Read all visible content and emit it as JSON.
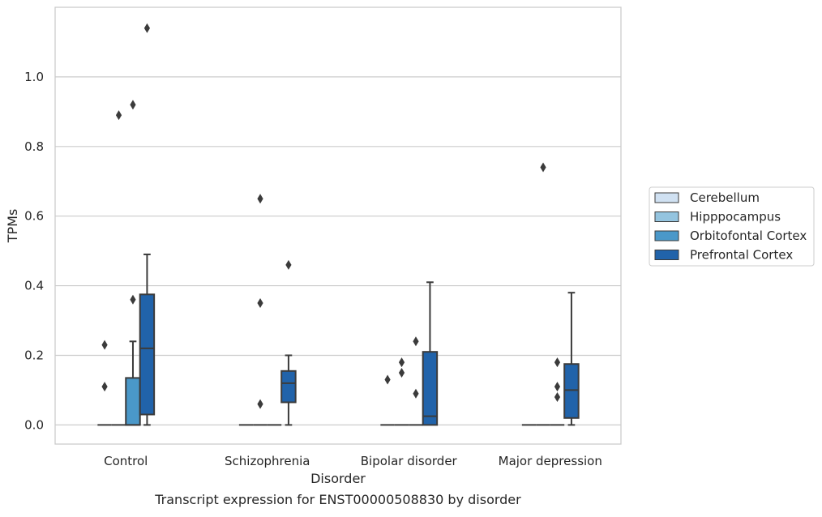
{
  "chart_data": {
    "type": "box",
    "title": "",
    "caption": "Transcript expression for ENST00000508830 by disorder",
    "xlabel": "Disorder",
    "ylabel": "TPMs",
    "ylim": [
      -0.055,
      1.2
    ],
    "yticks": [
      0.0,
      0.2,
      0.4,
      0.6,
      0.8,
      1.0
    ],
    "ytick_labels": [
      "0.0",
      "0.2",
      "0.4",
      "0.6",
      "0.8",
      "1.0"
    ],
    "grid": "horizontal",
    "legend_position": "right",
    "categories": [
      "Control",
      "Schizophrenia",
      "Bipolar disorder",
      "Major depression"
    ],
    "series": [
      {
        "name": "Cerebellum",
        "color": "#d0e1f2",
        "boxes": [
          {
            "q1": 0,
            "median": 0,
            "q3": 0,
            "whisker_low": 0,
            "whisker_high": 0,
            "outliers": [
              0.23,
              0.11
            ]
          },
          {
            "q1": 0,
            "median": 0,
            "q3": 0,
            "whisker_low": 0,
            "whisker_high": 0,
            "outliers": []
          },
          {
            "q1": 0,
            "median": 0,
            "q3": 0,
            "whisker_low": 0,
            "whisker_high": 0,
            "outliers": [
              0.13
            ]
          },
          {
            "q1": 0,
            "median": 0,
            "q3": 0,
            "whisker_low": 0,
            "whisker_high": 0,
            "outliers": []
          }
        ]
      },
      {
        "name": "Hipppocampus",
        "color": "#94c4df",
        "boxes": [
          {
            "q1": 0,
            "median": 0,
            "q3": 0,
            "whisker_low": 0,
            "whisker_high": 0,
            "outliers": [
              0.89
            ]
          },
          {
            "q1": 0,
            "median": 0,
            "q3": 0,
            "whisker_low": 0,
            "whisker_high": 0,
            "outliers": [
              0.65,
              0.35,
              0.06
            ]
          },
          {
            "q1": 0,
            "median": 0,
            "q3": 0,
            "whisker_low": 0,
            "whisker_high": 0,
            "outliers": [
              0.18,
              0.15
            ]
          },
          {
            "q1": 0,
            "median": 0,
            "q3": 0,
            "whisker_low": 0,
            "whisker_high": 0,
            "outliers": [
              0.74
            ]
          }
        ]
      },
      {
        "name": "Orbitofontal Cortex",
        "color": "#4a98c9",
        "boxes": [
          {
            "q1": 0,
            "median": 0,
            "q3": 0.135,
            "whisker_low": 0,
            "whisker_high": 0.24,
            "outliers": [
              0.92,
              0.36
            ]
          },
          {
            "q1": 0,
            "median": 0,
            "q3": 0,
            "whisker_low": 0,
            "whisker_high": 0,
            "outliers": []
          },
          {
            "q1": 0,
            "median": 0,
            "q3": 0,
            "whisker_low": 0,
            "whisker_high": 0,
            "outliers": [
              0.24,
              0.09
            ]
          },
          {
            "q1": 0,
            "median": 0,
            "q3": 0,
            "whisker_low": 0,
            "whisker_high": 0,
            "outliers": [
              0.18,
              0.11,
              0.08
            ]
          }
        ]
      },
      {
        "name": "Prefrontal Cortex",
        "color": "#2163aa",
        "boxes": [
          {
            "q1": 0.03,
            "median": 0.22,
            "q3": 0.375,
            "whisker_low": 0,
            "whisker_high": 0.49,
            "outliers": [
              1.14
            ]
          },
          {
            "q1": 0.065,
            "median": 0.12,
            "q3": 0.155,
            "whisker_low": 0,
            "whisker_high": 0.2,
            "outliers": [
              0.46
            ]
          },
          {
            "q1": 0,
            "median": 0.025,
            "q3": 0.21,
            "whisker_low": 0,
            "whisker_high": 0.41,
            "outliers": []
          },
          {
            "q1": 0.02,
            "median": 0.1,
            "q3": 0.175,
            "whisker_low": 0,
            "whisker_high": 0.38,
            "outliers": []
          }
        ]
      }
    ]
  }
}
